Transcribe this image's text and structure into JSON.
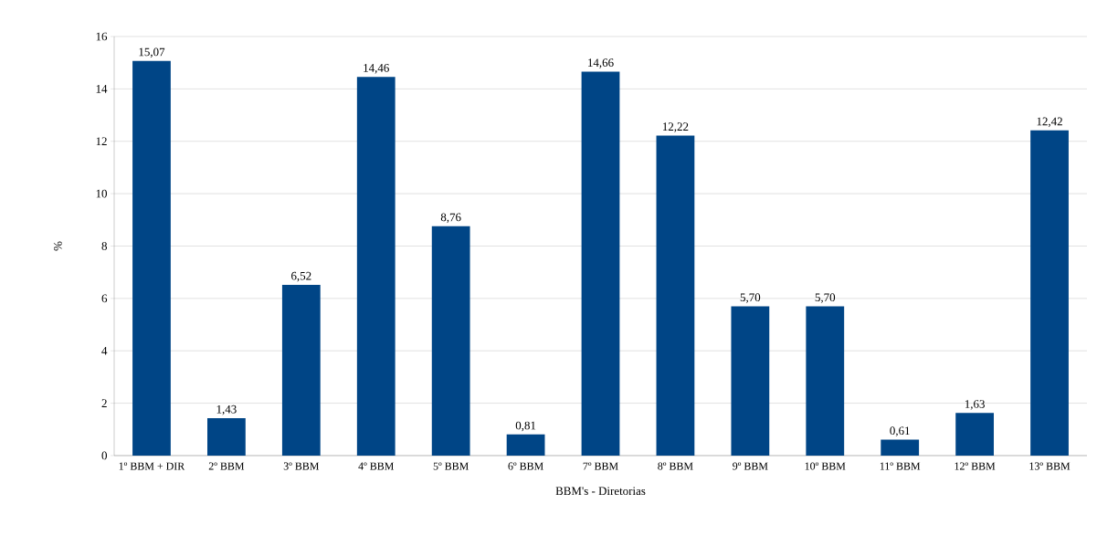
{
  "chart_data": {
    "type": "bar",
    "xlabel": "BBM's - Diretorias",
    "ylabel": "%",
    "categories": [
      "1º BBM + DIR",
      "2º BBM",
      "3º BBM",
      "4º BBM",
      "5º BBM",
      "6º BBM",
      "7º BBM",
      "8º BBM",
      "9º BBM",
      "10º BBM",
      "11º BBM",
      "12º BBM",
      "13º BBM"
    ],
    "values": [
      15.07,
      1.43,
      6.52,
      14.46,
      8.76,
      0.81,
      14.66,
      12.22,
      5.7,
      5.7,
      0.61,
      1.63,
      12.42
    ],
    "value_labels": [
      "15,07",
      "1,43",
      "6,52",
      "14,46",
      "8,76",
      "0,81",
      "14,66",
      "12,22",
      "5,70",
      "5,70",
      "0,61",
      "1,63",
      "12,42"
    ],
    "color": "#004586",
    "ylim": [
      0,
      16
    ],
    "yticks": [
      0,
      2,
      4,
      6,
      8,
      10,
      12,
      14,
      16
    ],
    "grid": "y"
  }
}
